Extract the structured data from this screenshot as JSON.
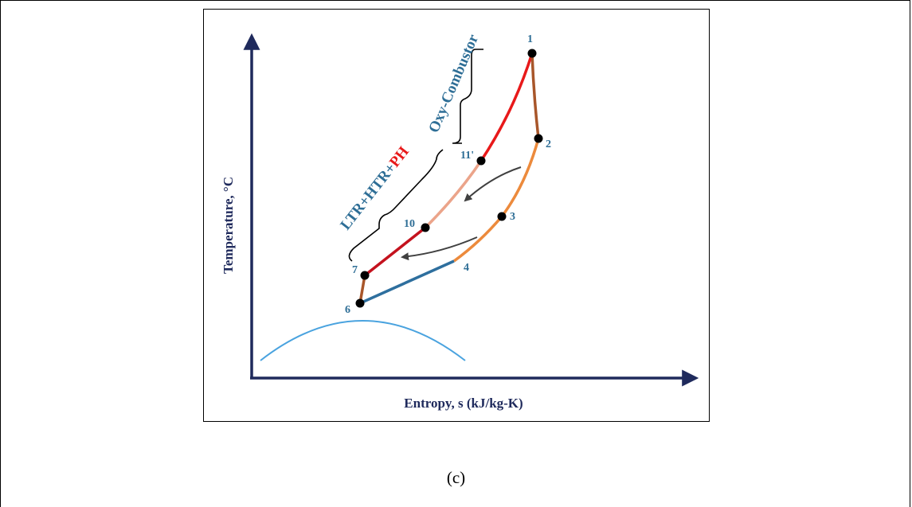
{
  "axes": {
    "y_label": "Temperature, °C",
    "x_label": "Entropy, s (kJ/kg-K)"
  },
  "states": {
    "s1": "1",
    "s2": "2",
    "s3": "3",
    "s4": "4",
    "s6": "6",
    "s7": "7",
    "s10": "10",
    "s11p": "11'"
  },
  "brackets": {
    "oxy_combustor": "Oxy-Combustor",
    "recuperators_prefix": "LTR+HTR+",
    "recuperators_highlight": "PH"
  },
  "caption": "(c)",
  "colors": {
    "axis": "#1f2a5c",
    "state_label": "#2e6e96",
    "combustor_line": "#e8191a",
    "recuperator_light": "#eba48a",
    "recuperator_dark": "#c4121e",
    "turbine_line": "#a8562a",
    "cooling_line": "#ec8a3c",
    "low_pressure_line": "#2e6f9e",
    "dome": "#4aa3df",
    "arrow": "#404040",
    "highlight_text": "#e8191a"
  }
}
